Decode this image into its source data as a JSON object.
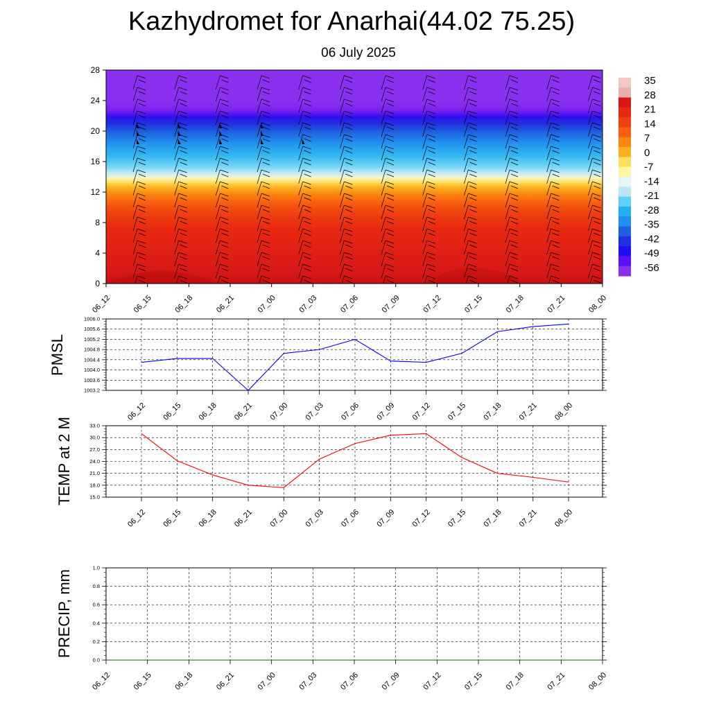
{
  "title": "Kazhydromet for Anarhai(44.02 75.25)",
  "subtitle": "06 July 2025",
  "chart_data": [
    {
      "type": "heatmap",
      "name": "Temperature cross-section with wind barbs",
      "x_ticks": [
        "06_12",
        "06_15",
        "06_18",
        "06_21",
        "07_00",
        "07_03",
        "07_06",
        "07_09",
        "07_12",
        "07_15",
        "07_18",
        "07_21",
        "08_00"
      ],
      "ylim": [
        0,
        28
      ],
      "y_ticks": [
        0,
        4,
        8,
        12,
        16,
        20,
        24,
        28
      ],
      "colorbar_labels": [
        "35",
        "28",
        "21",
        "14",
        "7",
        "0",
        "-7",
        "-14",
        "-21",
        "-28",
        "-35",
        "-42",
        "-49",
        "-56"
      ],
      "colorbar_colors": [
        "#f5c8c8",
        "#e8b0b0",
        "#d81818",
        "#e82810",
        "#f04010",
        "#f86010",
        "#fc8810",
        "#fcb020",
        "#fee060",
        "#fff8a0",
        "#e8f4f8",
        "#b8e8f8",
        "#60d0f8",
        "#20b0f0",
        "#2090f0",
        "#2060e0",
        "#2030e0",
        "#2010f0",
        "#6010f0",
        "#8a30f0"
      ],
      "ylabel": ""
    },
    {
      "type": "line",
      "ylabel": "PMSL",
      "categories": [
        "06_12",
        "06_15",
        "06_18",
        "06_21",
        "07_00",
        "07_03",
        "07_06",
        "07_09",
        "07_12",
        "07_15",
        "07_18",
        "07_21",
        "08_00"
      ],
      "y_ticks": [
        "1003.2",
        "1003.6",
        "1004.0",
        "1004.4",
        "1004.8",
        "1005.2",
        "1005.6",
        "1006.0"
      ],
      "ylim": [
        1003.2,
        1006.0
      ],
      "series": [
        {
          "values": [
            1004.3,
            1004.45,
            1004.45,
            1003.2,
            1004.65,
            1004.8,
            1005.2,
            1004.35,
            1004.3,
            1004.65,
            1005.5,
            1005.7,
            1005.8
          ],
          "color": "#0000ff"
        }
      ]
    },
    {
      "type": "line",
      "ylabel": "TEMP at 2 M",
      "categories": [
        "06_12",
        "06_15",
        "06_18",
        "06_21",
        "07_00",
        "07_03",
        "07_06",
        "07_09",
        "07_12",
        "07_15",
        "07_18",
        "07_21",
        "08_00"
      ],
      "y_ticks": [
        "15.0",
        "18.0",
        "21.0",
        "24.0",
        "27.0",
        "30.0",
        "33.0"
      ],
      "ylim": [
        15.0,
        33.0
      ],
      "series": [
        {
          "values": [
            31.0,
            24.2,
            20.6,
            18.0,
            17.4,
            24.6,
            28.5,
            30.6,
            31.0,
            25.0,
            21.0,
            20.0,
            18.8
          ],
          "color": "#ff0000"
        }
      ]
    },
    {
      "type": "line",
      "ylabel": "PRECIP, mm",
      "categories": [
        "06_12",
        "06_15",
        "06_18",
        "06_21",
        "07_00",
        "07_03",
        "07_06",
        "07_09",
        "07_12",
        "07_15",
        "07_18",
        "07_21",
        "08_00"
      ],
      "y_ticks": [
        "0.0",
        "0.2",
        "0.4",
        "0.6",
        "0.8",
        "1.0"
      ],
      "ylim": [
        0.0,
        1.0
      ],
      "series": [
        {
          "values": [
            0,
            0,
            0,
            0,
            0,
            0,
            0,
            0,
            0,
            0,
            0,
            0,
            0
          ],
          "color": "#006400"
        }
      ]
    }
  ]
}
